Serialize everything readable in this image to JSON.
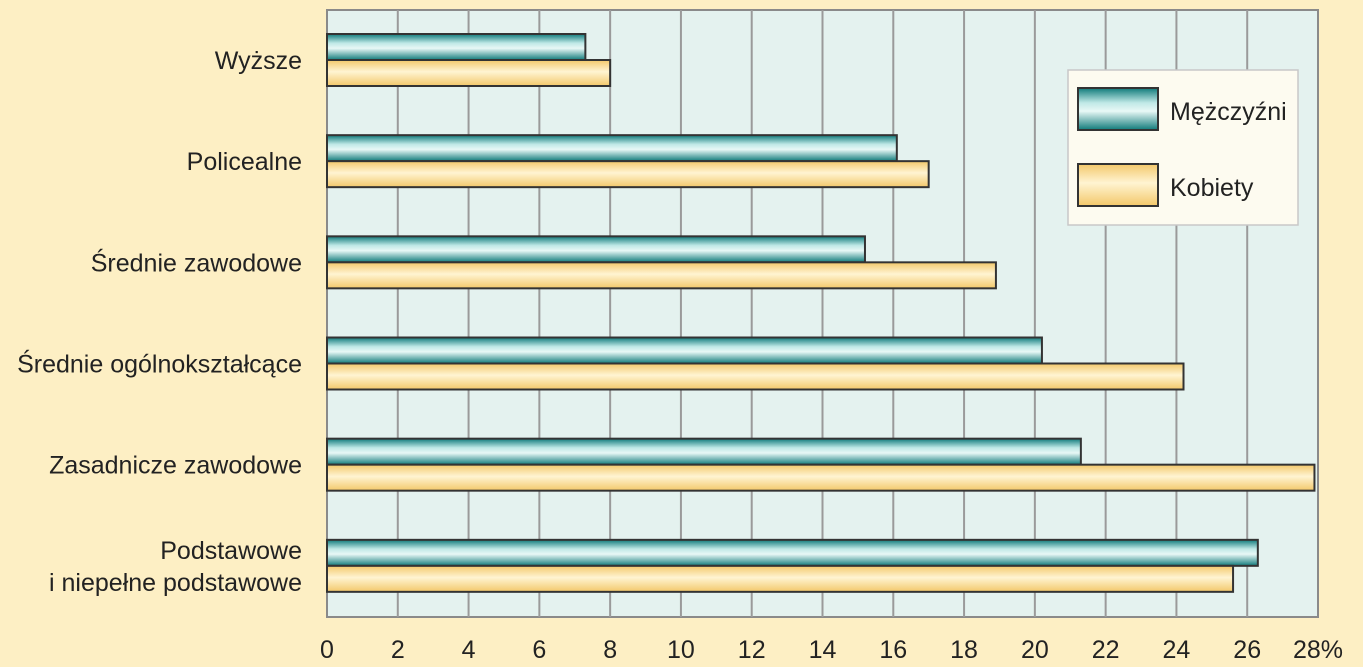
{
  "chart_data": {
    "type": "bar",
    "orientation": "horizontal",
    "categories": [
      [
        "Wyższe"
      ],
      [
        "Policealne"
      ],
      [
        "Średnie zawodowe"
      ],
      [
        "Średnie ogólnokształcące"
      ],
      [
        "Zasadnicze zawodowe"
      ],
      [
        "Podstawowe",
        "i niepełne podstawowe"
      ]
    ],
    "series": [
      {
        "name": "Mężczyźni",
        "values": [
          7.3,
          16.1,
          15.2,
          20.2,
          21.3,
          26.3
        ],
        "color": "#3aa6a6"
      },
      {
        "name": "Kobiety",
        "values": [
          8.0,
          17.0,
          18.9,
          24.2,
          27.9,
          25.6
        ],
        "color": "#fde4a0"
      }
    ],
    "x_ticks": [
      "0",
      "2",
      "4",
      "6",
      "8",
      "10",
      "12",
      "14",
      "16",
      "18",
      "20",
      "22",
      "24",
      "26",
      "28%"
    ],
    "xlim": [
      0,
      28
    ],
    "grid": true,
    "legend_position": "top-right",
    "colors": {
      "page_background": "#fdefc4",
      "plot_background": "#e4f2ef",
      "grid": "#9a9a9a"
    }
  }
}
